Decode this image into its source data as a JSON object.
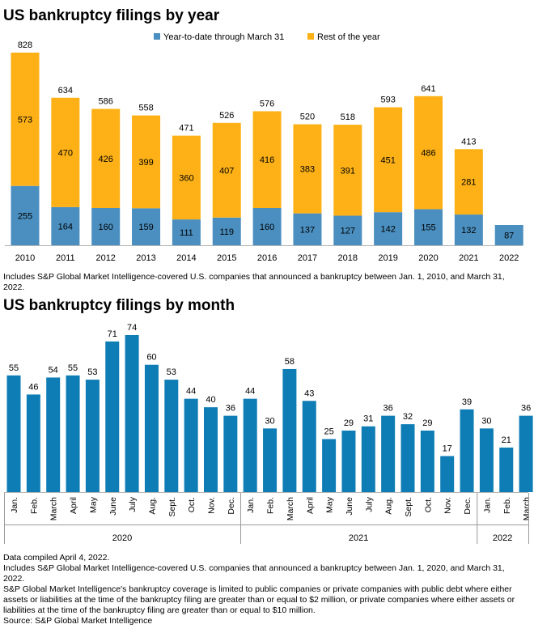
{
  "chart_data": [
    {
      "type": "bar",
      "stacked": true,
      "title": "US bankruptcy filings by year",
      "categories": [
        "2010",
        "2011",
        "2012",
        "2013",
        "2014",
        "2015",
        "2016",
        "2017",
        "2018",
        "2019",
        "2020",
        "2021",
        "2022"
      ],
      "series": [
        {
          "name": "Year-to-date through March 31",
          "color": "#4a8fc0",
          "values": [
            255,
            164,
            160,
            159,
            111,
            119,
            160,
            137,
            127,
            142,
            155,
            132,
            87
          ]
        },
        {
          "name": "Rest of the year",
          "color": "#fdb117",
          "values": [
            573,
            470,
            426,
            399,
            360,
            407,
            416,
            383,
            391,
            451,
            486,
            281,
            null
          ]
        }
      ],
      "totals": [
        828,
        634,
        586,
        558,
        471,
        526,
        576,
        520,
        518,
        593,
        641,
        413,
        null
      ],
      "legend": "top-right",
      "ylim": [
        0,
        850
      ],
      "grid": false
    },
    {
      "type": "bar",
      "title": "US bankruptcy filings by month",
      "color": "#0f7db5",
      "categories": [
        "Jan.",
        "Feb.",
        "March",
        "April",
        "May",
        "June",
        "July",
        "Aug.",
        "Sept.",
        "Oct.",
        "Nov.",
        "Dec.",
        "Jan.",
        "Feb.",
        "March",
        "April",
        "May",
        "June",
        "July",
        "Aug.",
        "Sept.",
        "Oct.",
        "Nov.",
        "Dec.",
        "Jan.",
        "Feb.",
        "March"
      ],
      "values": [
        55,
        46,
        54,
        55,
        53,
        71,
        74,
        60,
        53,
        44,
        40,
        36,
        44,
        30,
        58,
        43,
        25,
        29,
        31,
        36,
        32,
        29,
        17,
        39,
        30,
        21,
        36
      ],
      "groups": [
        {
          "label": "2020",
          "count": 12
        },
        {
          "label": "2021",
          "count": 12
        },
        {
          "label": "2022",
          "count": 3
        }
      ],
      "ylim": [
        0,
        80
      ],
      "grid": false
    }
  ],
  "notes": {
    "year_note": "Includes S&P Global Market Intelligence-covered U.S. companies that announced a bankruptcy between Jan. 1, 2010, and March 31, 2022.",
    "footer": [
      "Data compiled April 4, 2022.",
      "Includes S&P Global Market Intelligence-covered U.S. companies that announced a bankruptcy between Jan. 1, 2020, and March 31, 2022.",
      "S&P Global Market Intelligence's bankruptcy coverage is limited to public companies or private companies with public debt where either assets or liabilities at the time of the bankruptcy filing are greater than or equal to $2 million, or private companies where either assets or liabilities at the time of the bankruptcy filing are greater than or equal to $10 million.",
      "Source: S&P Global Market Intelligence"
    ]
  }
}
